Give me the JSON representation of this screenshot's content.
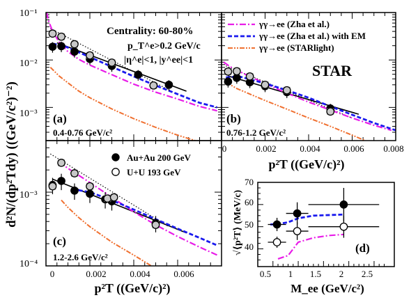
{
  "figure": {
    "y_axis_title": "d²N/(dp²Tdy) ((GeV/c²)⁻²)",
    "experiment_label": "STAR"
  },
  "legend_models": [
    {
      "name": "γγ→ee (Zha  et al.)",
      "color": "#e81ce8",
      "style": "dashdot"
    },
    {
      "name": "γγ→ee (Zha  et al.) with EM",
      "color": "#1a1aee",
      "style": "dashed"
    },
    {
      "name": "γγ→ee (STARlight)",
      "color": "#f07030",
      "style": "dashdotdot"
    }
  ],
  "legend_data": [
    {
      "name": "Au+Au 200 GeV",
      "marker": "filled-circle"
    },
    {
      "name": "U+U 193 GeV",
      "marker": "open-circle"
    }
  ],
  "chart_data": [
    {
      "type": "scatter",
      "panel": "(a)",
      "range_label": "0.4-0.76 GeV/c²",
      "annotations": [
        "Centrality: 60-80%",
        "p_T^e>0.2 GeV/c",
        "|η^e|<1, |y^ee|<1"
      ],
      "xlabel": "",
      "ylabel": "d²N/(dp²Tdy) ((GeV/c²)⁻²)",
      "xlim": [
        0,
        0.008
      ],
      "ylim": [
        0.0002,
        0.1
      ],
      "yscale": "log",
      "y_ticks": [
        "10⁻³",
        "10⁻²",
        "10⁻¹"
      ],
      "series": [
        {
          "name": "Au+Au 200 GeV",
          "marker": "filled-circle",
          "points": [
            [
              0.0003,
              0.019
            ],
            [
              0.0007,
              0.0195
            ],
            [
              0.0013,
              0.015
            ],
            [
              0.002,
              0.0105
            ],
            [
              0.003,
              0.0075
            ],
            [
              0.0042,
              0.0049
            ],
            [
              0.0056,
              0.003
            ]
          ]
        },
        {
          "name": "U+U 193 GeV",
          "marker": "open-circle",
          "points": [
            [
              0.0003,
              0.036
            ],
            [
              0.0007,
              0.031
            ],
            [
              0.0013,
              0.0215
            ],
            [
              0.002,
              0.0125
            ],
            [
              0.003,
              0.0088
            ],
            [
              0.0049,
              0.0029
            ]
          ]
        },
        {
          "name": "fit",
          "style": "solid",
          "points": [
            [
              0.0005,
              0.023
            ],
            [
              0.0064,
              0.0022
            ]
          ]
        },
        {
          "name": "fit U+U",
          "style": "dotted",
          "points": [
            [
              0.0002,
              0.046
            ],
            [
              0.0058,
              0.0021
            ]
          ]
        },
        {
          "name": "γγ→ee (Zha  et al.)",
          "style": "dashdot",
          "points": [
            [
              3e-05,
              0.1
            ],
            [
              0.0001,
              0.07
            ],
            [
              0.0003,
              0.04
            ],
            [
              0.0006,
              0.024
            ],
            [
              0.001,
              0.015
            ],
            [
              0.0015,
              0.0103
            ],
            [
              0.002,
              0.0078
            ],
            [
              0.003,
              0.0049
            ],
            [
              0.004,
              0.0031
            ],
            [
              0.005,
              0.0021
            ],
            [
              0.006,
              0.0015
            ],
            [
              0.007,
              0.00105
            ],
            [
              0.0078,
              0.00085
            ]
          ]
        },
        {
          "name": "γγ→ee (Zha  et al.) with EM",
          "style": "dashed",
          "points": [
            [
              0.0003,
              0.022
            ],
            [
              0.0008,
              0.02
            ],
            [
              0.0015,
              0.0145
            ],
            [
              0.002,
              0.0115
            ],
            [
              0.003,
              0.0072
            ],
            [
              0.004,
              0.0045
            ],
            [
              0.005,
              0.0029
            ],
            [
              0.006,
              0.0019
            ],
            [
              0.007,
              0.00125
            ],
            [
              0.0078,
              0.001
            ]
          ]
        },
        {
          "name": "γγ→ee (STARlight)",
          "style": "dashdotdot",
          "points": [
            [
              0.0002,
              0.007
            ],
            [
              0.0006,
              0.0046
            ],
            [
              0.001,
              0.0033
            ],
            [
              0.0015,
              0.0022
            ],
            [
              0.002,
              0.0016
            ],
            [
              0.003,
              0.00093
            ],
            [
              0.004,
              0.00058
            ],
            [
              0.005,
              0.00038
            ],
            [
              0.006,
              0.00026
            ],
            [
              0.0068,
              0.0002
            ]
          ]
        }
      ]
    },
    {
      "type": "scatter",
      "panel": "(b)",
      "range_label": "0.76-1.2 GeV/c²",
      "xlabel": "p²T ((GeV/c)²)",
      "ylabel": "",
      "xlim": [
        0,
        0.008
      ],
      "ylim": [
        0.0002,
        0.1
      ],
      "yscale": "log",
      "x_ticks": [
        "0",
        "0.002",
        "0.004",
        "0.006",
        "0.008"
      ],
      "series": [
        {
          "name": "Au+Au 200 GeV",
          "marker": "filled-circle",
          "points": [
            [
              0.0003,
              0.0035
            ],
            [
              0.0007,
              0.0042
            ],
            [
              0.0013,
              0.0034
            ],
            [
              0.002,
              0.0028
            ],
            [
              0.003,
              0.0021
            ],
            [
              0.005,
              0.00095
            ]
          ]
        },
        {
          "name": "U+U 193 GeV",
          "marker": "open-circle",
          "points": [
            [
              0.0003,
              0.0057
            ],
            [
              0.0007,
              0.0058
            ],
            [
              0.0013,
              0.0045
            ],
            [
              0.002,
              0.003
            ],
            [
              0.003,
              0.0023
            ],
            [
              0.005,
              0.00082
            ]
          ]
        },
        {
          "name": "fit",
          "style": "solid",
          "points": [
            [
              0.0003,
              0.0046
            ],
            [
              0.0063,
              0.00072
            ]
          ]
        },
        {
          "name": "fit U+U",
          "style": "dotted",
          "points": [
            [
              0.0002,
              0.0075
            ],
            [
              0.006,
              0.0006
            ]
          ]
        },
        {
          "name": "γγ→ee (Zha  et al.)",
          "style": "dashdot",
          "points": [
            [
              0.0001,
              0.009
            ],
            [
              0.0004,
              0.0072
            ],
            [
              0.001,
              0.0052
            ],
            [
              0.002,
              0.0032
            ],
            [
              0.003,
              0.002
            ],
            [
              0.004,
              0.0013
            ],
            [
              0.005,
              0.00088
            ],
            [
              0.006,
              0.0006
            ],
            [
              0.007,
              0.00042
            ],
            [
              0.0078,
              0.00033
            ]
          ]
        },
        {
          "name": "γγ→ee (Zha  et al.) with EM",
          "style": "dashed",
          "points": [
            [
              0.0002,
              0.0043
            ],
            [
              0.0008,
              0.0045
            ],
            [
              0.0015,
              0.0037
            ],
            [
              0.002,
              0.0032
            ],
            [
              0.003,
              0.0023
            ],
            [
              0.004,
              0.0016
            ],
            [
              0.005,
              0.00105
            ],
            [
              0.006,
              0.0007
            ],
            [
              0.007,
              0.00047
            ],
            [
              0.008,
              0.00033
            ]
          ]
        },
        {
          "name": "γγ→ee (STARlight)",
          "style": "dashdotdot",
          "points": [
            [
              0.0002,
              0.0034
            ],
            [
              0.0007,
              0.0025
            ],
            [
              0.0012,
              0.002
            ],
            [
              0.002,
              0.0014
            ],
            [
              0.003,
              0.00092
            ],
            [
              0.004,
              0.0006
            ],
            [
              0.005,
              0.0004
            ],
            [
              0.006,
              0.00026
            ],
            [
              0.0066,
              0.0002
            ]
          ]
        }
      ]
    },
    {
      "type": "scatter",
      "panel": "(c)",
      "range_label": "1.2-2.6 GeV/c²",
      "xlabel": "p²T ((GeV/c)²)",
      "ylabel": "d²N/(dp²Tdy) ((GeV/c²)⁻²)",
      "xlim": [
        0,
        0.008
      ],
      "ylim": [
        0.0001,
        0.005
      ],
      "yscale": "log",
      "x_ticks": [
        "0",
        "0.002",
        "0.004",
        "0.006"
      ],
      "y_ticks": [
        "10⁻⁴",
        "10⁻³"
      ],
      "series": [
        {
          "name": "Au+Au 200 GeV",
          "marker": "filled-circle",
          "points": [
            [
              0.0003,
              0.00125
            ],
            [
              0.0007,
              0.00142
            ],
            [
              0.0013,
              0.00105
            ],
            [
              0.002,
              0.00095
            ],
            [
              0.0027,
              0.0008
            ],
            [
              0.003,
              0.00075
            ],
            [
              0.005,
              0.00038
            ]
          ]
        },
        {
          "name": "U+U 193 GeV",
          "marker": "open-circle",
          "points": [
            [
              0.0003,
              0.0012
            ],
            [
              0.0007,
              0.0025
            ],
            [
              0.0013,
              0.0018
            ],
            [
              0.002,
              0.0012
            ],
            [
              0.0028,
              0.00082
            ],
            [
              0.0031,
              0.00085
            ],
            [
              0.005,
              0.00036
            ]
          ]
        },
        {
          "name": "fit",
          "style": "solid",
          "points": [
            [
              0.0003,
              0.0015
            ],
            [
              0.0064,
              0.00028
            ]
          ]
        },
        {
          "name": "fit U+U",
          "style": "dotted",
          "points": [
            [
              0.0002,
              0.0033
            ],
            [
              0.0056,
              0.00034
            ]
          ]
        },
        {
          "name": "γγ→ee (Zha  et al.)",
          "style": "dashdot",
          "points": [
            [
              0.0006,
              0.0026
            ],
            [
              0.001,
              0.0021
            ],
            [
              0.002,
              0.00135
            ],
            [
              0.003,
              0.00085
            ],
            [
              0.004,
              0.00054
            ],
            [
              0.005,
              0.00036
            ],
            [
              0.006,
              0.00025
            ],
            [
              0.007,
              0.00018
            ],
            [
              0.0078,
              0.00014
            ]
          ]
        },
        {
          "name": "γγ→ee (Zha  et al.) with EM",
          "style": "dashed",
          "points": [
            [
              0.0012,
              0.0011
            ],
            [
              0.002,
              0.001
            ],
            [
              0.003,
              0.00078
            ],
            [
              0.004,
              0.00058
            ],
            [
              0.005,
              0.00043
            ],
            [
              0.006,
              0.00032
            ],
            [
              0.007,
              0.00024
            ],
            [
              0.0078,
              0.00019
            ]
          ]
        },
        {
          "name": "γγ→ee (STARlight)",
          "style": "dashdotdot",
          "points": [
            [
              0.0007,
              0.00078
            ],
            [
              0.001,
              0.00062
            ],
            [
              0.0015,
              0.00045
            ],
            [
              0.002,
              0.00034
            ],
            [
              0.003,
              0.00021
            ],
            [
              0.004,
              0.00014
            ],
            [
              0.0048,
              0.0001
            ]
          ]
        }
      ]
    },
    {
      "type": "scatter",
      "panel": "(d)",
      "xlabel": "M_ee (GeV/c²)",
      "ylabel": "√⟨p²T⟩ (MeV/c)",
      "xlim": [
        0.2,
        2.9
      ],
      "ylim": [
        32,
        70
      ],
      "x_ticks": [
        "0.5",
        "1",
        "1.5",
        "2",
        "2.5"
      ],
      "y_ticks": [
        "40",
        "50",
        "60",
        "70"
      ],
      "series": [
        {
          "name": "Au+Au 200 GeV",
          "marker": "filled-circle",
          "points": [
            [
              0.58,
              51.0
            ],
            [
              0.98,
              56.0
            ],
            [
              1.9,
              60.0
            ]
          ],
          "xerr": [
            0.18,
            0.22,
            0.7
          ],
          "yerr": [
            3.0,
            5.0,
            7.5
          ]
        },
        {
          "name": "U+U 193 GeV",
          "marker": "open-circle",
          "points": [
            [
              0.58,
              43.0
            ],
            [
              0.98,
              48.0
            ],
            [
              1.9,
              50.0
            ]
          ],
          "xerr": [
            0.18,
            0.22,
            0.7
          ],
          "yerr": [
            2.5,
            4.0,
            5.0
          ]
        },
        {
          "name": "γγ→ee (Zha  et al.) with EM",
          "style": "dashed",
          "points": [
            [
              0.45,
              51.0
            ],
            [
              0.6,
              51.2
            ],
            [
              0.8,
              52.0
            ],
            [
              1.0,
              53.8
            ],
            [
              1.3,
              55.0
            ],
            [
              1.9,
              55.5
            ]
          ]
        },
        {
          "name": "γγ→ee (Zha  et al.)",
          "style": "dashdot",
          "points": [
            [
              0.6,
              35.5
            ],
            [
              0.8,
              37.0
            ],
            [
              1.0,
              43.0
            ],
            [
              1.3,
              45.0
            ],
            [
              1.6,
              46.0
            ],
            [
              1.9,
              46.5
            ]
          ]
        }
      ]
    }
  ]
}
